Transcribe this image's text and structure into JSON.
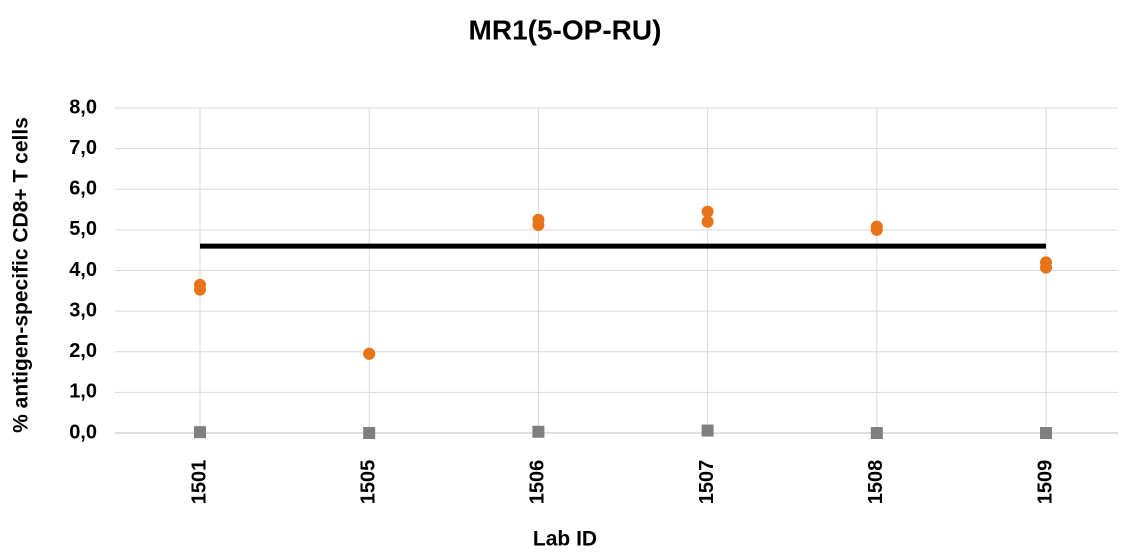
{
  "chart_data": {
    "type": "scatter",
    "title": "MR1(5-OP-RU)",
    "x_label": "Lab ID",
    "y_label": "% antigen-specific CD8+ T cells",
    "categories": [
      "1501",
      "1505",
      "1506",
      "1507",
      "1508",
      "1509"
    ],
    "series": [
      {
        "color": "#e8741a",
        "marker": "circle",
        "values": [
          3.65,
          1.95,
          5.25,
          5.45,
          5.08,
          4.2
        ]
      },
      {
        "color": "#e8741a",
        "marker": "circle",
        "values": [
          3.53,
          1.95,
          5.12,
          5.2,
          5.0,
          4.07
        ]
      },
      {
        "color": "#7f7f7f",
        "marker": "square",
        "values": [
          0.02,
          0.0,
          0.03,
          0.06,
          0.0,
          0.0
        ]
      },
      {
        "color": "#000000",
        "marker": "line",
        "values": [
          4.6,
          4.6,
          4.6,
          4.6,
          4.6,
          4.6
        ]
      }
    ],
    "ylim": [
      0,
      8
    ],
    "yticks": [
      {
        "value": 0,
        "label": "0,0"
      },
      {
        "value": 1,
        "label": "1,0"
      },
      {
        "value": 2,
        "label": "2,0"
      },
      {
        "value": 3,
        "label": "3,0"
      },
      {
        "value": 4,
        "label": "4,0"
      },
      {
        "value": 5,
        "label": "5,0"
      },
      {
        "value": 6,
        "label": "6,0"
      },
      {
        "value": 7,
        "label": "7,0"
      },
      {
        "value": 8,
        "label": "8,0"
      }
    ],
    "grid": true
  }
}
